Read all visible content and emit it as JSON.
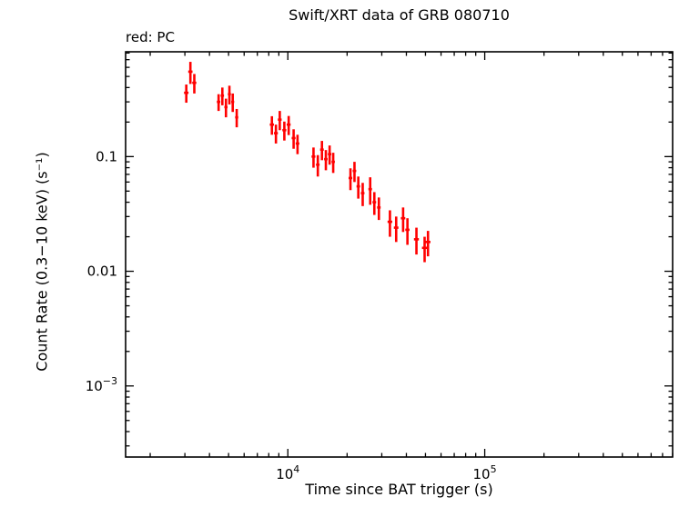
{
  "chart_data": {
    "type": "scatter",
    "title": "Swift/XRT data of GRB 080710",
    "legend": "red: PC",
    "xlabel": "Time since BAT trigger (s)",
    "ylabel": "Count Rate (0.3−10 keV) (s⁻¹)",
    "mode": "PC",
    "color": "#ff0000",
    "axis_color": "#000000",
    "xscale": "log",
    "yscale": "log",
    "grid": false,
    "xlim": [
      1500,
      900000
    ],
    "ylim": [
      0.00024,
      0.82
    ],
    "xticks": [
      {
        "value": 10000,
        "label": "10⁴",
        "base": "10",
        "exp": "4"
      },
      {
        "value": 100000,
        "label": "10⁵",
        "base": "10",
        "exp": "5"
      }
    ],
    "yticks": [
      {
        "value": 0.1,
        "label": "0.1"
      },
      {
        "value": 0.01,
        "label": "0.01"
      },
      {
        "value": 0.001,
        "label": "10⁻³",
        "base": "10",
        "exp": "−3"
      }
    ],
    "points": [
      {
        "t": 3050,
        "t_err": 80,
        "rate": 0.36,
        "rate_err": 0.065
      },
      {
        "t": 3200,
        "t_err": 80,
        "rate": 0.55,
        "rate_err": 0.12
      },
      {
        "t": 3350,
        "t_err": 80,
        "rate": 0.44,
        "rate_err": 0.085
      },
      {
        "t": 4450,
        "t_err": 90,
        "rate": 0.3,
        "rate_err": 0.05
      },
      {
        "t": 4650,
        "t_err": 90,
        "rate": 0.34,
        "rate_err": 0.06
      },
      {
        "t": 4850,
        "t_err": 90,
        "rate": 0.27,
        "rate_err": 0.05
      },
      {
        "t": 5050,
        "t_err": 90,
        "rate": 0.35,
        "rate_err": 0.065
      },
      {
        "t": 5250,
        "t_err": 90,
        "rate": 0.3,
        "rate_err": 0.055
      },
      {
        "t": 5500,
        "t_err": 100,
        "rate": 0.22,
        "rate_err": 0.04
      },
      {
        "t": 8300,
        "t_err": 200,
        "rate": 0.19,
        "rate_err": 0.035
      },
      {
        "t": 8700,
        "t_err": 200,
        "rate": 0.16,
        "rate_err": 0.03
      },
      {
        "t": 9100,
        "t_err": 200,
        "rate": 0.21,
        "rate_err": 0.04
      },
      {
        "t": 9600,
        "t_err": 220,
        "rate": 0.17,
        "rate_err": 0.032
      },
      {
        "t": 10100,
        "t_err": 230,
        "rate": 0.19,
        "rate_err": 0.036
      },
      {
        "t": 10700,
        "t_err": 240,
        "rate": 0.145,
        "rate_err": 0.028
      },
      {
        "t": 11200,
        "t_err": 240,
        "rate": 0.13,
        "rate_err": 0.025
      },
      {
        "t": 13500,
        "t_err": 300,
        "rate": 0.1,
        "rate_err": 0.02
      },
      {
        "t": 14200,
        "t_err": 300,
        "rate": 0.085,
        "rate_err": 0.018
      },
      {
        "t": 14900,
        "t_err": 320,
        "rate": 0.115,
        "rate_err": 0.022
      },
      {
        "t": 15600,
        "t_err": 320,
        "rate": 0.095,
        "rate_err": 0.019
      },
      {
        "t": 16300,
        "t_err": 330,
        "rate": 0.105,
        "rate_err": 0.02
      },
      {
        "t": 17000,
        "t_err": 330,
        "rate": 0.09,
        "rate_err": 0.018
      },
      {
        "t": 20800,
        "t_err": 450,
        "rate": 0.065,
        "rate_err": 0.014
      },
      {
        "t": 21800,
        "t_err": 450,
        "rate": 0.075,
        "rate_err": 0.015
      },
      {
        "t": 22800,
        "t_err": 470,
        "rate": 0.055,
        "rate_err": 0.012
      },
      {
        "t": 24000,
        "t_err": 500,
        "rate": 0.048,
        "rate_err": 0.011
      },
      {
        "t": 26200,
        "t_err": 550,
        "rate": 0.052,
        "rate_err": 0.014
      },
      {
        "t": 27500,
        "t_err": 580,
        "rate": 0.04,
        "rate_err": 0.009
      },
      {
        "t": 29000,
        "t_err": 600,
        "rate": 0.036,
        "rate_err": 0.008
      },
      {
        "t": 33000,
        "t_err": 900,
        "rate": 0.027,
        "rate_err": 0.007
      },
      {
        "t": 35500,
        "t_err": 950,
        "rate": 0.024,
        "rate_err": 0.006
      },
      {
        "t": 38500,
        "t_err": 1000,
        "rate": 0.029,
        "rate_err": 0.007
      },
      {
        "t": 40500,
        "t_err": 1000,
        "rate": 0.023,
        "rate_err": 0.006
      },
      {
        "t": 45000,
        "t_err": 1300,
        "rate": 0.019,
        "rate_err": 0.005
      },
      {
        "t": 49500,
        "t_err": 1500,
        "rate": 0.016,
        "rate_err": 0.004
      },
      {
        "t": 51500,
        "t_err": 1500,
        "rate": 0.018,
        "rate_err": 0.0045
      }
    ]
  }
}
